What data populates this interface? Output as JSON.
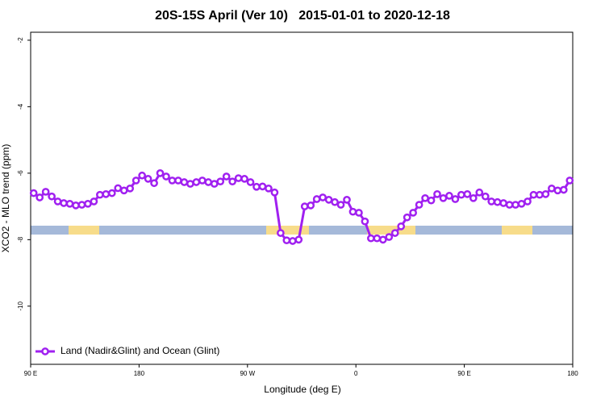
{
  "chart_data": {
    "type": "line",
    "title": "20S-15S April (Ver 10)   2015-01-01 to 2020-12-18",
    "x_label": "Longitude (deg E)",
    "y_label": "XCO2 - MLO trend (ppm)",
    "x": [
      92.5,
      97.5,
      102.5,
      107.5,
      112.5,
      117.5,
      122.5,
      127.5,
      132.5,
      137.5,
      142.5,
      147.5,
      152.5,
      157.5,
      162.5,
      167.5,
      172.5,
      177.5,
      182.5,
      187.5,
      192.5,
      197.5,
      202.5,
      207.5,
      212.5,
      217.5,
      222.5,
      227.5,
      232.5,
      237.5,
      242.5,
      247.5,
      252.5,
      257.5,
      262.5,
      267.5,
      272.5,
      277.5,
      282.5,
      287.5,
      292.5,
      297.5,
      302.5,
      307.5,
      312.5,
      317.5,
      322.5,
      327.5,
      332.5,
      337.5,
      342.5,
      347.5,
      352.5,
      357.5,
      362.5,
      367.5,
      372.5,
      377.5,
      382.5,
      387.5,
      392.5,
      397.5,
      402.5,
      407.5,
      412.5,
      417.5,
      422.5,
      427.5,
      432.5,
      437.5,
      442.5,
      447.5,
      452.5,
      457.5,
      462.5,
      467.5,
      472.5,
      477.5,
      482.5,
      487.5,
      492.5,
      497.5,
      502.5,
      507.5,
      512.5,
      517.5,
      522.5,
      527.5,
      532.5,
      537.5
    ],
    "series": [
      {
        "name": "Land (Nadir&Glint) and Ocean (Glint)",
        "color": "#a020f0",
        "values": [
          -6.6,
          -6.73,
          -6.56,
          -6.7,
          -6.85,
          -6.9,
          -6.92,
          -6.97,
          -6.95,
          -6.92,
          -6.85,
          -6.65,
          -6.63,
          -6.6,
          -6.45,
          -6.52,
          -6.46,
          -6.22,
          -6.07,
          -6.17,
          -6.3,
          -6.0,
          -6.1,
          -6.22,
          -6.22,
          -6.27,
          -6.32,
          -6.27,
          -6.22,
          -6.27,
          -6.32,
          -6.25,
          -6.1,
          -6.25,
          -6.15,
          -6.17,
          -6.27,
          -6.41,
          -6.4,
          -6.46,
          -6.58,
          -7.8,
          -8.02,
          -8.04,
          -8.0,
          -7.0,
          -6.97,
          -6.78,
          -6.73,
          -6.8,
          -6.87,
          -6.95,
          -6.8,
          -7.16,
          -7.19,
          -7.45,
          -7.96,
          -7.96,
          -8.0,
          -7.92,
          -7.8,
          -7.6,
          -7.33,
          -7.19,
          -6.95,
          -6.75,
          -6.82,
          -6.63,
          -6.75,
          -6.68,
          -6.78,
          -6.65,
          -6.63,
          -6.75,
          -6.58,
          -6.7,
          -6.85,
          -6.87,
          -6.9,
          -6.95,
          -6.95,
          -6.92,
          -6.85,
          -6.65,
          -6.65,
          -6.63,
          -6.46,
          -6.52,
          -6.5,
          -6.22
        ]
      }
    ],
    "xlim": [
      90,
      540
    ],
    "xticks": [
      {
        "value": 90,
        "label": "90 E"
      },
      180,
      {
        "value": 270,
        "label": "90 W"
      },
      {
        "value": 360,
        "label": "0"
      },
      {
        "value": 450,
        "label": "90 E"
      },
      {
        "value": 540,
        "label": "180"
      }
    ],
    "ylim": [
      -11.75,
      -1.76
    ],
    "yticks": [
      -2,
      -4,
      -6,
      -8,
      -10
    ],
    "legend": "bottom-left"
  }
}
